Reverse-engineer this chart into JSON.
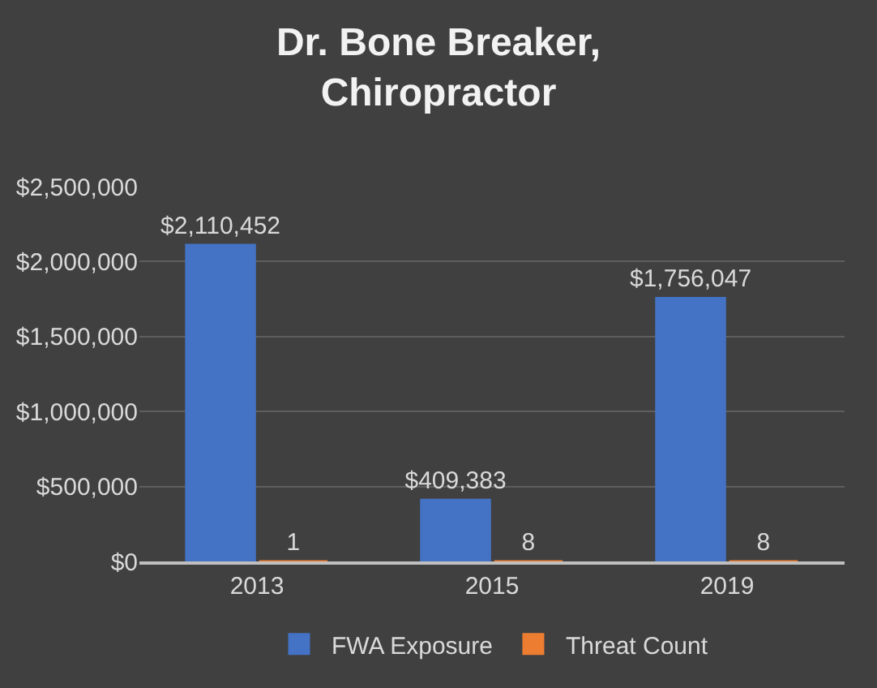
{
  "chart_data": {
    "type": "bar",
    "title": "Dr. Bone Breaker,\nChiropractor",
    "categories": [
      "2013",
      "2015",
      "2019"
    ],
    "series": [
      {
        "name": "FWA Exposure",
        "color": "#4472c4",
        "values": [
          2110452,
          409383,
          1756047
        ],
        "value_labels": [
          "$2,110,452",
          "$409,383",
          "$1,756,047"
        ]
      },
      {
        "name": "Threat Count",
        "color": "#ed7d31",
        "values": [
          1,
          8,
          8
        ],
        "value_labels": [
          "1",
          "8",
          "8"
        ]
      }
    ],
    "ylim": [
      0,
      2500000
    ],
    "yticks": [
      {
        "value": 0,
        "label": "$0"
      },
      {
        "value": 500000,
        "label": "$500,000"
      },
      {
        "value": 1000000,
        "label": "$1,000,000"
      },
      {
        "value": 1500000,
        "label": "$1,500,000"
      },
      {
        "value": 2000000,
        "label": "$2,000,000"
      },
      {
        "value": 2500000,
        "label": "$2,500,000"
      }
    ],
    "grid": "y",
    "legend": "bottom"
  }
}
